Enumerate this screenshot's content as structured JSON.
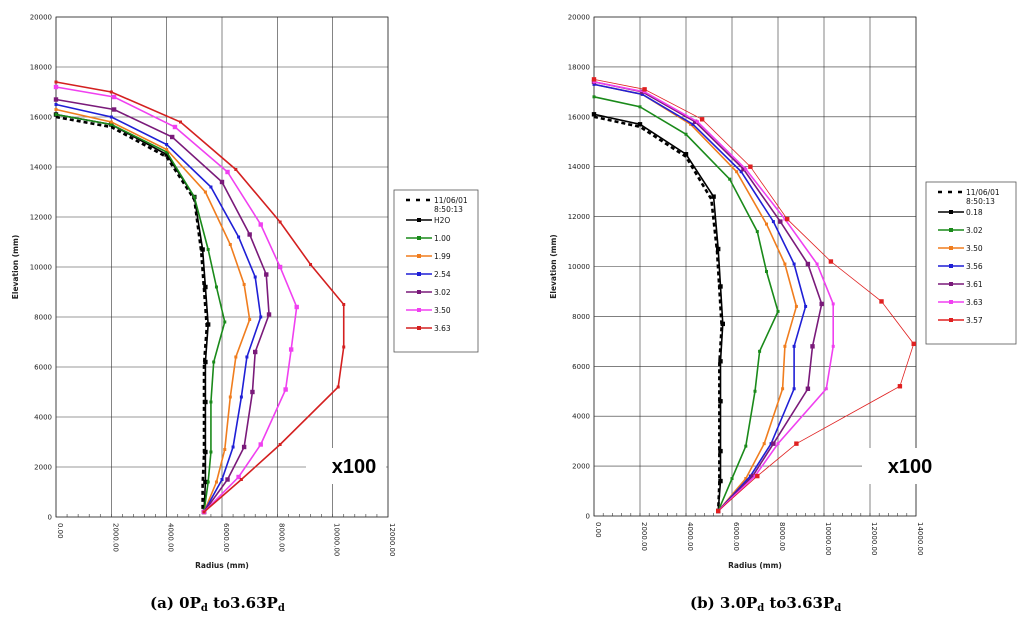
{
  "chart_data": [
    {
      "type": "line",
      "caption": "(a) 0P",
      "caption_sub": "d",
      "caption_mid": " to3.63P",
      "caption_sub2": "d",
      "xlabel": "Radius (mm)",
      "ylabel": "Elevation (mm)",
      "xlim": [
        0,
        12000
      ],
      "ylim": [
        0,
        20000
      ],
      "xticks": [
        "0.00",
        "2000.00",
        "4000.00",
        "6000.00",
        "8000.00",
        "10000.00",
        "12000.00"
      ],
      "yticks": [
        "0",
        "2000",
        "4000",
        "6000",
        "8000",
        "10000",
        "12000",
        "14000",
        "16000",
        "18000",
        "20000"
      ],
      "grid": true,
      "legend_placement": "right",
      "multiplier": "x100",
      "legend_header": "11/06/01",
      "legend_header2": "8:50:13",
      "series": [
        {
          "name": "11/06/01",
          "color": "#000000",
          "dashed": true,
          "points": [
            [
              0,
              16000
            ],
            [
              2000,
              15600
            ],
            [
              4000,
              14400
            ],
            [
              5000,
              12700
            ],
            [
              5250,
              10600
            ],
            [
              5350,
              9100
            ],
            [
              5450,
              7600
            ],
            [
              5350,
              6100
            ],
            [
              5350,
              4500
            ],
            [
              5350,
              2500
            ],
            [
              5300,
              1300
            ],
            [
              5300,
              200
            ]
          ]
        },
        {
          "name": "H2O",
          "color": "#000000",
          "points": [
            [
              0,
              16100
            ],
            [
              2000,
              15700
            ],
            [
              4000,
              14500
            ],
            [
              5000,
              12800
            ],
            [
              5300,
              10700
            ],
            [
              5400,
              9200
            ],
            [
              5500,
              7700
            ],
            [
              5400,
              6200
            ],
            [
              5400,
              4600
            ],
            [
              5400,
              2600
            ],
            [
              5400,
              1400
            ],
            [
              5350,
              200
            ]
          ]
        },
        {
          "name": "1.00",
          "color": "#1a8a1a",
          "points": [
            [
              0,
              16100
            ],
            [
              2000,
              15700
            ],
            [
              4000,
              14600
            ],
            [
              5000,
              12800
            ],
            [
              5500,
              10700
            ],
            [
              5800,
              9200
            ],
            [
              6100,
              7800
            ],
            [
              5700,
              6200
            ],
            [
              5600,
              4600
            ],
            [
              5600,
              2600
            ],
            [
              5500,
              1400
            ],
            [
              5350,
              200
            ]
          ]
        },
        {
          "name": "1.99",
          "color": "#f07d1e",
          "points": [
            [
              0,
              16300
            ],
            [
              2000,
              15800
            ],
            [
              4000,
              14700
            ],
            [
              5400,
              13000
            ],
            [
              6300,
              10900
            ],
            [
              6800,
              9300
            ],
            [
              7000,
              7900
            ],
            [
              6500,
              6400
            ],
            [
              6300,
              4800
            ],
            [
              6100,
              2700
            ],
            [
              5800,
              1400
            ],
            [
              5350,
              200
            ]
          ]
        },
        {
          "name": "2.54",
          "color": "#1f1fd6",
          "points": [
            [
              0,
              16500
            ],
            [
              2000,
              16000
            ],
            [
              4000,
              14900
            ],
            [
              5600,
              13200
            ],
            [
              6600,
              11200
            ],
            [
              7200,
              9600
            ],
            [
              7400,
              8000
            ],
            [
              6900,
              6400
            ],
            [
              6700,
              4800
            ],
            [
              6400,
              2800
            ],
            [
              6000,
              1500
            ],
            [
              5350,
              200
            ]
          ]
        },
        {
          "name": "3.02",
          "color": "#7a1a7a",
          "points": [
            [
              0,
              16700
            ],
            [
              2100,
              16300
            ],
            [
              4200,
              15200
            ],
            [
              6000,
              13400
            ],
            [
              7000,
              11300
            ],
            [
              7600,
              9700
            ],
            [
              7700,
              8100
            ],
            [
              7200,
              6600
            ],
            [
              7100,
              5000
            ],
            [
              6800,
              2800
            ],
            [
              6200,
              1500
            ],
            [
              5350,
              200
            ]
          ]
        },
        {
          "name": "3.50",
          "color": "#f040f0",
          "points": [
            [
              0,
              17200
            ],
            [
              2100,
              16800
            ],
            [
              4300,
              15600
            ],
            [
              6200,
              13800
            ],
            [
              7400,
              11700
            ],
            [
              8100,
              10000
            ],
            [
              8700,
              8400
            ],
            [
              8500,
              6700
            ],
            [
              8300,
              5100
            ],
            [
              7400,
              2900
            ],
            [
              6600,
              1600
            ],
            [
              5350,
              200
            ]
          ]
        },
        {
          "name": "3.63",
          "color": "#d42020",
          "points": [
            [
              0,
              17400
            ],
            [
              2000,
              17000
            ],
            [
              4500,
              15800
            ],
            [
              6500,
              13900
            ],
            [
              8100,
              11800
            ],
            [
              9200,
              10100
            ],
            [
              10400,
              8500
            ],
            [
              10400,
              6800
            ],
            [
              10200,
              5200
            ],
            [
              8100,
              2900
            ],
            [
              6700,
              1500
            ],
            [
              5350,
              200
            ]
          ]
        }
      ]
    },
    {
      "type": "line",
      "caption": "(b) 3.0P",
      "caption_sub": "d",
      "caption_mid": " to3.63P",
      "caption_sub2": "d",
      "xlabel": "Radius (mm)",
      "ylabel": "Elevation (mm)",
      "xlim": [
        0,
        14000
      ],
      "ylim": [
        0,
        20000
      ],
      "xticks": [
        "0.00",
        "2000.00",
        "4000.00",
        "6000.00",
        "8000.00",
        "10000.00",
        "12000.00",
        "14000.00"
      ],
      "yticks": [
        "0",
        "2000",
        "4000",
        "6000",
        "8000",
        "10000",
        "12000",
        "14000",
        "16000",
        "18000",
        "20000"
      ],
      "grid": true,
      "legend_placement": "right",
      "multiplier": "x100",
      "legend_header": "11/06/01",
      "legend_header2": "8:50:13",
      "series": [
        {
          "name": "11/06/01",
          "color": "#000000",
          "dashed": true,
          "points": [
            [
              0,
              16000
            ],
            [
              2000,
              15600
            ],
            [
              4000,
              14400
            ],
            [
              5100,
              12700
            ],
            [
              5350,
              10600
            ],
            [
              5450,
              9100
            ],
            [
              5550,
              7600
            ],
            [
              5450,
              6100
            ],
            [
              5450,
              4500
            ],
            [
              5450,
              2500
            ],
            [
              5450,
              1300
            ],
            [
              5400,
              200
            ]
          ]
        },
        {
          "name": "0.18",
          "color": "#000000",
          "points": [
            [
              0,
              16100
            ],
            [
              2000,
              15700
            ],
            [
              4000,
              14500
            ],
            [
              5200,
              12800
            ],
            [
              5400,
              10700
            ],
            [
              5500,
              9200
            ],
            [
              5600,
              7700
            ],
            [
              5500,
              6200
            ],
            [
              5500,
              4600
            ],
            [
              5500,
              2600
            ],
            [
              5500,
              1400
            ],
            [
              5400,
              200
            ]
          ]
        },
        {
          "name": "3.02",
          "color": "#1a8a1a",
          "points": [
            [
              0,
              16800
            ],
            [
              2000,
              16400
            ],
            [
              4000,
              15300
            ],
            [
              5900,
              13500
            ],
            [
              7100,
              11400
            ],
            [
              7500,
              9800
            ],
            [
              8000,
              8200
            ],
            [
              7200,
              6600
            ],
            [
              7000,
              5000
            ],
            [
              6600,
              2800
            ],
            [
              6000,
              1500
            ],
            [
              5400,
              200
            ]
          ]
        },
        {
          "name": "3.50",
          "color": "#f07d1e",
          "points": [
            [
              0,
              17300
            ],
            [
              2100,
              16900
            ],
            [
              4200,
              15700
            ],
            [
              6200,
              13800
            ],
            [
              7500,
              11700
            ],
            [
              8300,
              10100
            ],
            [
              8800,
              8400
            ],
            [
              8300,
              6800
            ],
            [
              8200,
              5100
            ],
            [
              7400,
              2900
            ],
            [
              6600,
              1500
            ],
            [
              5400,
              200
            ]
          ]
        },
        {
          "name": "3.56",
          "color": "#1f1fd6",
          "points": [
            [
              0,
              17300
            ],
            [
              2100,
              16900
            ],
            [
              4300,
              15700
            ],
            [
              6400,
              13800
            ],
            [
              7800,
              11800
            ],
            [
              8700,
              10100
            ],
            [
              9200,
              8400
            ],
            [
              8700,
              6800
            ],
            [
              8700,
              5100
            ],
            [
              7700,
              2900
            ],
            [
              6800,
              1600
            ],
            [
              5400,
              200
            ]
          ]
        },
        {
          "name": "3.61",
          "color": "#7a1a7a",
          "points": [
            [
              0,
              17400
            ],
            [
              2100,
              17000
            ],
            [
              4400,
              15800
            ],
            [
              6500,
              13900
            ],
            [
              8100,
              11800
            ],
            [
              9300,
              10100
            ],
            [
              9900,
              8500
            ],
            [
              9500,
              6800
            ],
            [
              9300,
              5100
            ],
            [
              7800,
              2900
            ],
            [
              6900,
              1600
            ],
            [
              5400,
              200
            ]
          ]
        },
        {
          "name": "3.63",
          "color": "#f040f0",
          "points": [
            [
              0,
              17400
            ],
            [
              2200,
              17000
            ],
            [
              4500,
              15800
            ],
            [
              6600,
              13900
            ],
            [
              8300,
              11900
            ],
            [
              9700,
              10100
            ],
            [
              10400,
              8500
            ],
            [
              10400,
              6800
            ],
            [
              10100,
              5100
            ],
            [
              8000,
              2900
            ],
            [
              7000,
              1600
            ],
            [
              5400,
              200
            ]
          ]
        },
        {
          "name": "3.57",
          "color": "#e02020",
          "thin": true,
          "points": [
            [
              0,
              17500
            ],
            [
              2200,
              17100
            ],
            [
              4700,
              15900
            ],
            [
              6800,
              14000
            ],
            [
              8400,
              11900
            ],
            [
              10300,
              10200
            ],
            [
              12500,
              8600
            ],
            [
              13900,
              6900
            ],
            [
              13300,
              5200
            ],
            [
              8800,
              2900
            ],
            [
              7100,
              1600
            ],
            [
              5400,
              200
            ]
          ]
        }
      ]
    }
  ]
}
